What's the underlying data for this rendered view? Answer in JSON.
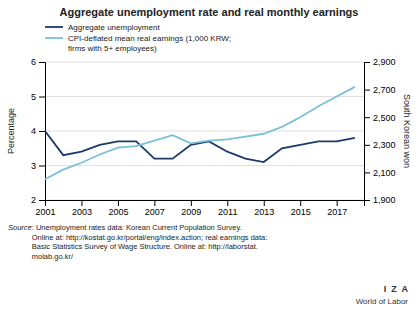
{
  "chart_data": {
    "type": "line",
    "title": "Aggregate unemployment rate and real monthly earnings",
    "x": [
      2001,
      2002,
      2003,
      2004,
      2005,
      2006,
      2007,
      2008,
      2009,
      2010,
      2011,
      2012,
      2013,
      2014,
      2015,
      2016,
      2017,
      2018
    ],
    "xlim": [
      2001,
      2018.5
    ],
    "xticks": [
      2001,
      2003,
      2005,
      2007,
      2009,
      2011,
      2013,
      2015,
      2017
    ],
    "ylabel": "Percentage",
    "ylim": [
      2.0,
      6.0
    ],
    "yticks": [
      2,
      3,
      4,
      5,
      6
    ],
    "y2label": "South Korean won",
    "y2lim": [
      1900,
      2900
    ],
    "y2ticks": [
      {
        "value": 1900,
        "label": "1,900"
      },
      {
        "value": 2100,
        "label": "2,100"
      },
      {
        "value": 2300,
        "label": "2,300"
      },
      {
        "value": 2500,
        "label": "2,500"
      },
      {
        "value": 2700,
        "label": "2,700"
      },
      {
        "value": 2900,
        "label": "2,900"
      }
    ],
    "series": [
      {
        "name": "Aggregate unemployment",
        "color": "#1a3a6b",
        "values": [
          4.0,
          3.3,
          3.4,
          3.6,
          3.7,
          3.7,
          3.2,
          3.2,
          3.6,
          3.7,
          3.4,
          3.2,
          3.1,
          3.5,
          3.6,
          3.7,
          3.7,
          3.8
        ]
      },
      {
        "name": "CPI-deflated mean real earnings (1,000 KRW;\nfirms with 5+ employees)",
        "color": "#7bbfd8",
        "axis": "y2",
        "values": [
          2050,
          2120,
          2170,
          2230,
          2280,
          2290,
          2330,
          2370,
          2310,
          2330,
          2340,
          2360,
          2380,
          2430,
          2500,
          2580,
          2650,
          2720
        ]
      }
    ],
    "grid": true,
    "legend": "upper left",
    "annotations": [
      "Source",
      ": Unemployment rates data: Korean Current Population Survey.\nOnline at: http://kostat.go.kr/portal/eng/index.action; real earnings data:\nBasic Statistics Survey of Wage Structure. Online at: http://laborstat.\nmolab.go.kr/",
      "I  Z  A",
      "World of Labor"
    ]
  }
}
